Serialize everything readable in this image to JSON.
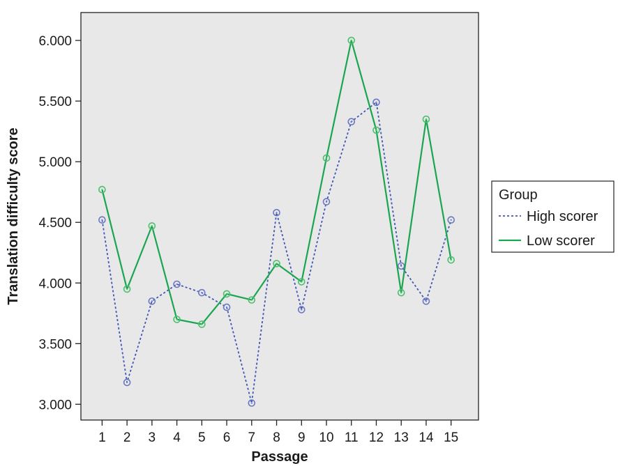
{
  "chart_data": {
    "type": "line",
    "title": "",
    "xlabel": "Passage",
    "ylabel": "Translation difficulty score",
    "x": [
      1,
      2,
      3,
      4,
      5,
      6,
      7,
      8,
      9,
      10,
      11,
      12,
      13,
      14,
      15
    ],
    "x_tick_labels": [
      "1",
      "2",
      "3",
      "4",
      "5",
      "6",
      "7",
      "8",
      "9",
      "10",
      "11",
      "12",
      "13",
      "14",
      "15"
    ],
    "ylim": [
      2.87,
      6.23
    ],
    "xlim": [
      0.15,
      16.1
    ],
    "y_ticks": [
      3.0,
      3.5,
      4.0,
      4.5,
      5.0,
      5.5,
      6.0
    ],
    "y_tick_labels": [
      "3.000",
      "3.500",
      "4.000",
      "4.500",
      "5.000",
      "5.500",
      "6.000"
    ],
    "grid": false,
    "plot_background": "#e8e8e8",
    "legend": {
      "title": "Group",
      "placement": "right"
    },
    "series": [
      {
        "name": "High scorer",
        "style": "dashed",
        "color": "#3f55b8",
        "marker_color": "#6a78c4",
        "values": [
          4.52,
          3.18,
          3.85,
          3.99,
          3.92,
          3.8,
          3.01,
          4.58,
          3.78,
          4.67,
          5.33,
          5.49,
          4.14,
          3.85,
          4.52
        ]
      },
      {
        "name": "Low scorer",
        "style": "solid",
        "color": "#1aa650",
        "marker_color": "#4cbf6d",
        "values": [
          4.77,
          3.95,
          4.47,
          3.7,
          3.66,
          3.91,
          3.86,
          4.16,
          4.01,
          5.03,
          6.0,
          5.26,
          3.92,
          5.35,
          4.19
        ]
      }
    ]
  }
}
